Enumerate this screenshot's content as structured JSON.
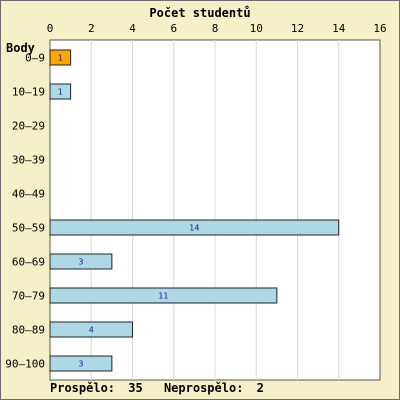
{
  "chart_data": {
    "type": "bar",
    "orientation": "horizontal",
    "title": "Počet studentů",
    "ylabel": "Body",
    "xlabel": "",
    "xlim": [
      0,
      16
    ],
    "x_ticks": [
      "0",
      "2",
      "4",
      "6",
      "8",
      "10",
      "12",
      "14",
      "16"
    ],
    "categories": [
      "0–9",
      "10–19",
      "20–29",
      "30–39",
      "40–49",
      "50–59",
      "60–69",
      "70–79",
      "80–89",
      "90–100"
    ],
    "values": [
      1,
      1,
      0,
      0,
      0,
      14,
      3,
      11,
      4,
      3
    ],
    "value_labels": [
      "1",
      "1",
      "",
      "",
      "",
      "14",
      "3",
      "11",
      "4",
      "3"
    ],
    "highlight_index": 0,
    "colors": {
      "bar": "#add8e6",
      "bar_highlight": "#ffa500",
      "plot_background": "#ffffff",
      "background": "#f5f0c8",
      "grid": "#d8d8d8"
    },
    "grid": "vertical"
  },
  "footer": {
    "passed_label": "Prospělo:",
    "passed_value": "35",
    "failed_label": "Neprospělo:",
    "failed_value": "2"
  }
}
